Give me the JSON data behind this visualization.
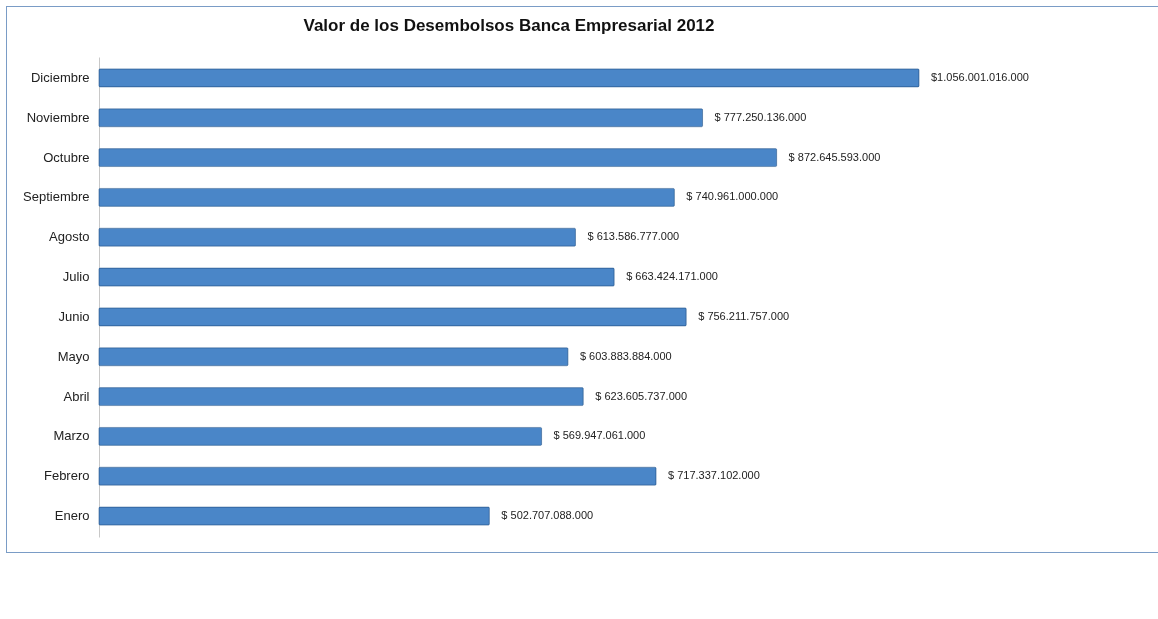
{
  "chart_data": {
    "type": "bar",
    "orientation": "horizontal",
    "title": "Valor de los Desembolsos Banca Empresarial 2012",
    "categories": [
      "Diciembre",
      "Noviembre",
      "Octubre",
      "Septiembre",
      "Agosto",
      "Julio",
      "Junio",
      "Mayo",
      "Abril",
      "Marzo",
      "Febrero",
      "Enero"
    ],
    "values": [
      1056001016000,
      777250136000,
      872645593000,
      740961000000,
      613586777000,
      663424171000,
      756211757000,
      603883884000,
      623605737000,
      569947061000,
      717337102000,
      502707088000
    ],
    "value_labels": [
      "$1.056.001.016.000",
      "$ 777.250.136.000",
      "$ 872.645.593.000",
      "$ 740.961.000.000",
      "$ 613.586.777.000",
      "$ 663.424.171.000",
      "$ 756.211.757.000",
      "$ 603.883.884.000",
      "$ 623.605.737.000",
      "$ 569.947.061.000",
      "$ 717.337.102.000",
      "$ 502.707.088.000"
    ],
    "color": "#4a86c8"
  }
}
